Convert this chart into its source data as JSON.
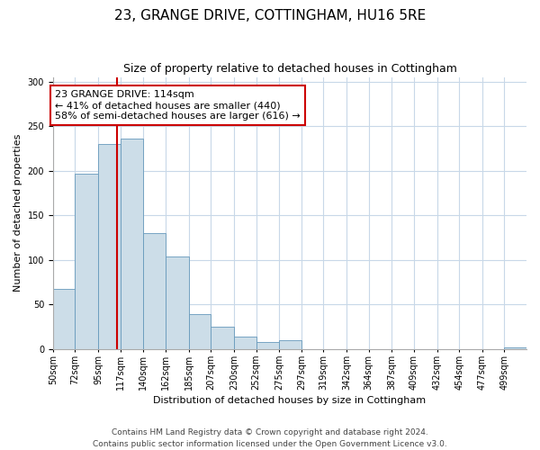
{
  "title": "23, GRANGE DRIVE, COTTINGHAM, HU16 5RE",
  "subtitle": "Size of property relative to detached houses in Cottingham",
  "xlabel": "Distribution of detached houses by size in Cottingham",
  "ylabel": "Number of detached properties",
  "bin_labels": [
    "50sqm",
    "72sqm",
    "95sqm",
    "117sqm",
    "140sqm",
    "162sqm",
    "185sqm",
    "207sqm",
    "230sqm",
    "252sqm",
    "275sqm",
    "297sqm",
    "319sqm",
    "342sqm",
    "364sqm",
    "387sqm",
    "409sqm",
    "432sqm",
    "454sqm",
    "477sqm",
    "499sqm"
  ],
  "bin_edges": [
    50,
    72,
    95,
    117,
    140,
    162,
    185,
    207,
    230,
    252,
    275,
    297,
    319,
    342,
    364,
    387,
    409,
    432,
    454,
    477,
    499,
    521
  ],
  "bar_values": [
    68,
    197,
    230,
    236,
    130,
    104,
    39,
    25,
    14,
    8,
    10,
    0,
    0,
    0,
    0,
    0,
    0,
    0,
    0,
    0,
    2
  ],
  "bar_color": "#ccdde8",
  "bar_edge_color": "#6699bb",
  "vline_x": 114,
  "vline_color": "#cc0000",
  "annotation_text": "23 GRANGE DRIVE: 114sqm\n← 41% of detached houses are smaller (440)\n58% of semi-detached houses are larger (616) →",
  "annotation_box_color": "#ffffff",
  "annotation_box_edge": "#cc0000",
  "ylim": [
    0,
    305
  ],
  "yticks": [
    0,
    50,
    100,
    150,
    200,
    250,
    300
  ],
  "footer_line1": "Contains HM Land Registry data © Crown copyright and database right 2024.",
  "footer_line2": "Contains public sector information licensed under the Open Government Licence v3.0.",
  "background_color": "#ffffff",
  "grid_color": "#c8d8e8",
  "title_fontsize": 11,
  "subtitle_fontsize": 9,
  "axis_label_fontsize": 8,
  "tick_fontsize": 7,
  "annotation_fontsize": 8,
  "footer_fontsize": 6.5
}
